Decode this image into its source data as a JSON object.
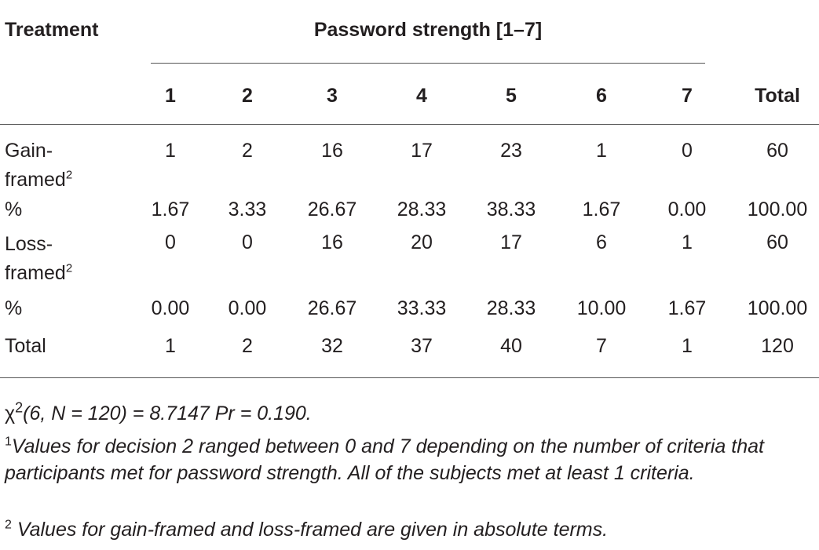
{
  "table": {
    "header_treatment": "Treatment",
    "header_group": "Password strength [1–7]",
    "columns": [
      "1",
      "2",
      "3",
      "4",
      "5",
      "6",
      "7",
      "Total"
    ],
    "rows": [
      {
        "label_line1": "Gain-",
        "label_line2": "framed",
        "label_sup": "2",
        "values": [
          "1",
          "2",
          "16",
          "17",
          "23",
          "1",
          "0",
          "60"
        ]
      },
      {
        "label": "%",
        "values": [
          "1.67",
          "3.33",
          "26.67",
          "28.33",
          "38.33",
          "1.67",
          "0.00",
          "100.00"
        ]
      },
      {
        "label_line1": "Loss-",
        "label_line2": "framed",
        "label_sup": "2",
        "values": [
          "0",
          "0",
          "16",
          "20",
          "17",
          "6",
          "1",
          "60"
        ]
      },
      {
        "label": "%",
        "values": [
          "0.00",
          "0.00",
          "26.67",
          "33.33",
          "28.33",
          "10.00",
          "1.67",
          "100.00"
        ]
      },
      {
        "label": "Total",
        "values": [
          "1",
          "2",
          "32",
          "37",
          "40",
          "7",
          "1",
          "120"
        ]
      }
    ]
  },
  "footnotes": {
    "chi_symbol": "χ",
    "chi_sup": "2",
    "chi_text": "(6, N = 120) = 8.7147 Pr = 0.190.",
    "note1_marker": "1",
    "note1_text": "Values for decision 2 ranged between 0 and 7 depending on the number of criteria that participants met for password strength. All of the subjects met at least 1 criteria.",
    "note2_marker": "2",
    "note2_text": " Values for gain-framed and loss-framed are given in absolute terms."
  }
}
